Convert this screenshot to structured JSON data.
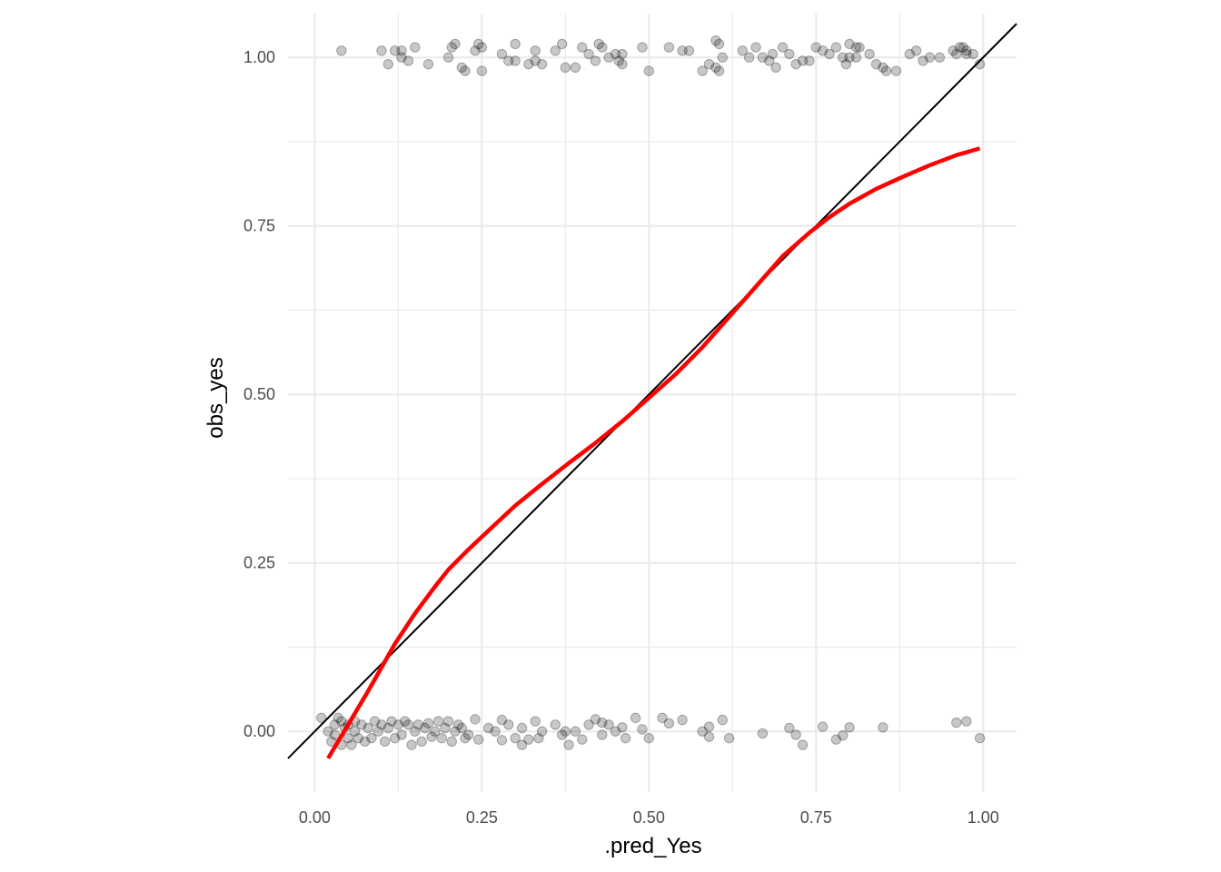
{
  "chart_data": {
    "type": "scatter",
    "title": "",
    "xlabel": ".pred_Yes",
    "ylabel": "obs_yes",
    "xlim": [
      -0.04,
      1.05
    ],
    "ylim": [
      -0.09,
      1.065
    ],
    "x_ticks": [
      0.0,
      0.25,
      0.5,
      0.75,
      1.0
    ],
    "x_tick_labels": [
      "0.00",
      "0.25",
      "0.50",
      "0.75",
      "1.00"
    ],
    "y_ticks": [
      0.0,
      0.25,
      0.5,
      0.75,
      1.0
    ],
    "y_tick_labels": [
      "0.00",
      "0.25",
      "0.50",
      "0.75",
      "1.00"
    ],
    "grid": true,
    "legend": "none",
    "colors": {
      "points": "#000000",
      "points_opacity": 0.22,
      "smooth": "#ff0000",
      "reference": "#000000",
      "grid": "#ebebeb"
    },
    "series": [
      {
        "kind": "points",
        "points": [
          [
            0.04,
            1.01
          ],
          [
            0.1,
            1.01
          ],
          [
            0.11,
            0.99
          ],
          [
            0.12,
            1.01
          ],
          [
            0.13,
            1.01
          ],
          [
            0.13,
            1.0
          ],
          [
            0.14,
            0.995
          ],
          [
            0.15,
            1.015
          ],
          [
            0.17,
            0.99
          ],
          [
            0.2,
            1.0
          ],
          [
            0.205,
            1.015
          ],
          [
            0.21,
            1.02
          ],
          [
            0.22,
            0.985
          ],
          [
            0.225,
            0.98
          ],
          [
            0.24,
            1.01
          ],
          [
            0.245,
            1.02
          ],
          [
            0.25,
            1.015
          ],
          [
            0.25,
            0.98
          ],
          [
            0.28,
            1.005
          ],
          [
            0.29,
            0.995
          ],
          [
            0.3,
            1.02
          ],
          [
            0.3,
            0.995
          ],
          [
            0.32,
            0.99
          ],
          [
            0.33,
            1.01
          ],
          [
            0.33,
            0.995
          ],
          [
            0.34,
            0.99
          ],
          [
            0.36,
            1.01
          ],
          [
            0.37,
            1.02
          ],
          [
            0.375,
            0.985
          ],
          [
            0.39,
            0.985
          ],
          [
            0.4,
            1.015
          ],
          [
            0.41,
            1.005
          ],
          [
            0.42,
            0.995
          ],
          [
            0.425,
            1.02
          ],
          [
            0.43,
            1.015
          ],
          [
            0.44,
            1.0
          ],
          [
            0.45,
            1.005
          ],
          [
            0.455,
            0.995
          ],
          [
            0.46,
            1.005
          ],
          [
            0.46,
            0.99
          ],
          [
            0.49,
            1.015
          ],
          [
            0.5,
            0.98
          ],
          [
            0.53,
            1.015
          ],
          [
            0.55,
            1.01
          ],
          [
            0.56,
            1.01
          ],
          [
            0.58,
            0.98
          ],
          [
            0.59,
            0.99
          ],
          [
            0.6,
            1.025
          ],
          [
            0.6,
            0.985
          ],
          [
            0.605,
            1.02
          ],
          [
            0.605,
            0.98
          ],
          [
            0.61,
            1.0
          ],
          [
            0.64,
            1.01
          ],
          [
            0.65,
            1.0
          ],
          [
            0.66,
            1.015
          ],
          [
            0.67,
            1.0
          ],
          [
            0.68,
            0.995
          ],
          [
            0.685,
            1.005
          ],
          [
            0.69,
            0.985
          ],
          [
            0.7,
            1.015
          ],
          [
            0.71,
            1.005
          ],
          [
            0.72,
            0.99
          ],
          [
            0.73,
            0.995
          ],
          [
            0.74,
            0.995
          ],
          [
            0.75,
            1.015
          ],
          [
            0.76,
            1.01
          ],
          [
            0.77,
            1.005
          ],
          [
            0.78,
            1.015
          ],
          [
            0.79,
            1.0
          ],
          [
            0.795,
            0.99
          ],
          [
            0.8,
            1.02
          ],
          [
            0.8,
            1.0
          ],
          [
            0.81,
            1.015
          ],
          [
            0.81,
            1.0
          ],
          [
            0.815,
            1.015
          ],
          [
            0.83,
            1.005
          ],
          [
            0.84,
            0.99
          ],
          [
            0.85,
            0.985
          ],
          [
            0.855,
            0.98
          ],
          [
            0.87,
            0.98
          ],
          [
            0.89,
            1.005
          ],
          [
            0.9,
            1.01
          ],
          [
            0.91,
            0.995
          ],
          [
            0.92,
            1.0
          ],
          [
            0.935,
            1.0
          ],
          [
            0.955,
            1.01
          ],
          [
            0.96,
            1.005
          ],
          [
            0.965,
            1.015
          ],
          [
            0.97,
            1.015
          ],
          [
            0.975,
            1.01
          ],
          [
            0.975,
            1.005
          ],
          [
            0.985,
            1.005
          ],
          [
            0.995,
            0.99
          ],
          [
            0.01,
            0.02
          ],
          [
            0.02,
            0.0
          ],
          [
            0.025,
            -0.015
          ],
          [
            0.03,
            0.01
          ],
          [
            0.03,
            -0.005
          ],
          [
            0.035,
            0.02
          ],
          [
            0.04,
            0.015
          ],
          [
            0.04,
            -0.02
          ],
          [
            0.045,
            0.005
          ],
          [
            0.05,
            0.01
          ],
          [
            0.05,
            -0.01
          ],
          [
            0.055,
            -0.02
          ],
          [
            0.06,
            0.015
          ],
          [
            0.06,
            0.0
          ],
          [
            0.065,
            -0.01
          ],
          [
            0.07,
            0.01
          ],
          [
            0.075,
            -0.015
          ],
          [
            0.08,
            0.005
          ],
          [
            0.085,
            -0.01
          ],
          [
            0.09,
            0.015
          ],
          [
            0.095,
            0.0
          ],
          [
            0.1,
            0.01
          ],
          [
            0.105,
            -0.015
          ],
          [
            0.11,
            0.005
          ],
          [
            0.115,
            0.015
          ],
          [
            0.12,
            -0.01
          ],
          [
            0.125,
            0.01
          ],
          [
            0.13,
            -0.005
          ],
          [
            0.135,
            0.015
          ],
          [
            0.14,
            0.01
          ],
          [
            0.145,
            -0.02
          ],
          [
            0.15,
            0.0
          ],
          [
            0.155,
            0.01
          ],
          [
            0.16,
            -0.015
          ],
          [
            0.165,
            0.005
          ],
          [
            0.17,
            0.012
          ],
          [
            0.175,
            -0.008
          ],
          [
            0.18,
            0.0
          ],
          [
            0.185,
            0.015
          ],
          [
            0.19,
            -0.01
          ],
          [
            0.195,
            0.005
          ],
          [
            0.2,
            0.015
          ],
          [
            0.205,
            -0.015
          ],
          [
            0.21,
            0.0
          ],
          [
            0.215,
            0.01
          ],
          [
            0.22,
            0.005
          ],
          [
            0.225,
            -0.01
          ],
          [
            0.23,
            -0.005
          ],
          [
            0.24,
            0.018
          ],
          [
            0.245,
            -0.012
          ],
          [
            0.26,
            0.005
          ],
          [
            0.27,
            0.0
          ],
          [
            0.28,
            0.017
          ],
          [
            0.28,
            -0.013
          ],
          [
            0.29,
            0.01
          ],
          [
            0.3,
            -0.01
          ],
          [
            0.31,
            0.005
          ],
          [
            0.31,
            -0.02
          ],
          [
            0.32,
            -0.012
          ],
          [
            0.33,
            0.015
          ],
          [
            0.335,
            -0.01
          ],
          [
            0.34,
            0.0
          ],
          [
            0.36,
            0.01
          ],
          [
            0.37,
            -0.005
          ],
          [
            0.375,
            0.0
          ],
          [
            0.38,
            -0.02
          ],
          [
            0.39,
            0.0
          ],
          [
            0.4,
            -0.012
          ],
          [
            0.41,
            0.01
          ],
          [
            0.42,
            0.018
          ],
          [
            0.43,
            0.013
          ],
          [
            0.43,
            -0.005
          ],
          [
            0.44,
            0.01
          ],
          [
            0.45,
            0.0
          ],
          [
            0.46,
            0.006
          ],
          [
            0.465,
            -0.01
          ],
          [
            0.48,
            0.02
          ],
          [
            0.49,
            0.003
          ],
          [
            0.5,
            -0.01
          ],
          [
            0.52,
            0.02
          ],
          [
            0.53,
            0.012
          ],
          [
            0.55,
            0.017
          ],
          [
            0.58,
            0.0
          ],
          [
            0.59,
            0.007
          ],
          [
            0.59,
            -0.008
          ],
          [
            0.61,
            0.017
          ],
          [
            0.62,
            -0.01
          ],
          [
            0.67,
            -0.003
          ],
          [
            0.71,
            0.005
          ],
          [
            0.72,
            -0.005
          ],
          [
            0.73,
            -0.02
          ],
          [
            0.76,
            0.007
          ],
          [
            0.78,
            -0.012
          ],
          [
            0.79,
            -0.006
          ],
          [
            0.8,
            0.006
          ],
          [
            0.85,
            0.006
          ],
          [
            0.96,
            0.013
          ],
          [
            0.975,
            0.015
          ],
          [
            0.995,
            -0.01
          ]
        ]
      },
      {
        "kind": "smooth",
        "x": [
          0.02,
          0.05,
          0.08,
          0.1,
          0.12,
          0.15,
          0.18,
          0.2,
          0.23,
          0.26,
          0.3,
          0.34,
          0.38,
          0.42,
          0.46,
          0.5,
          0.54,
          0.58,
          0.62,
          0.66,
          0.7,
          0.74,
          0.77,
          0.8,
          0.84,
          0.88,
          0.92,
          0.96,
          0.995
        ],
        "y": [
          -0.04,
          0.01,
          0.06,
          0.095,
          0.13,
          0.175,
          0.215,
          0.24,
          0.27,
          0.298,
          0.335,
          0.367,
          0.398,
          0.428,
          0.46,
          0.495,
          0.53,
          0.57,
          0.615,
          0.66,
          0.705,
          0.74,
          0.763,
          0.783,
          0.805,
          0.823,
          0.84,
          0.855,
          0.865
        ]
      },
      {
        "kind": "reference",
        "x": [
          -0.04,
          1.05
        ],
        "y": [
          -0.04,
          1.05
        ]
      }
    ]
  }
}
